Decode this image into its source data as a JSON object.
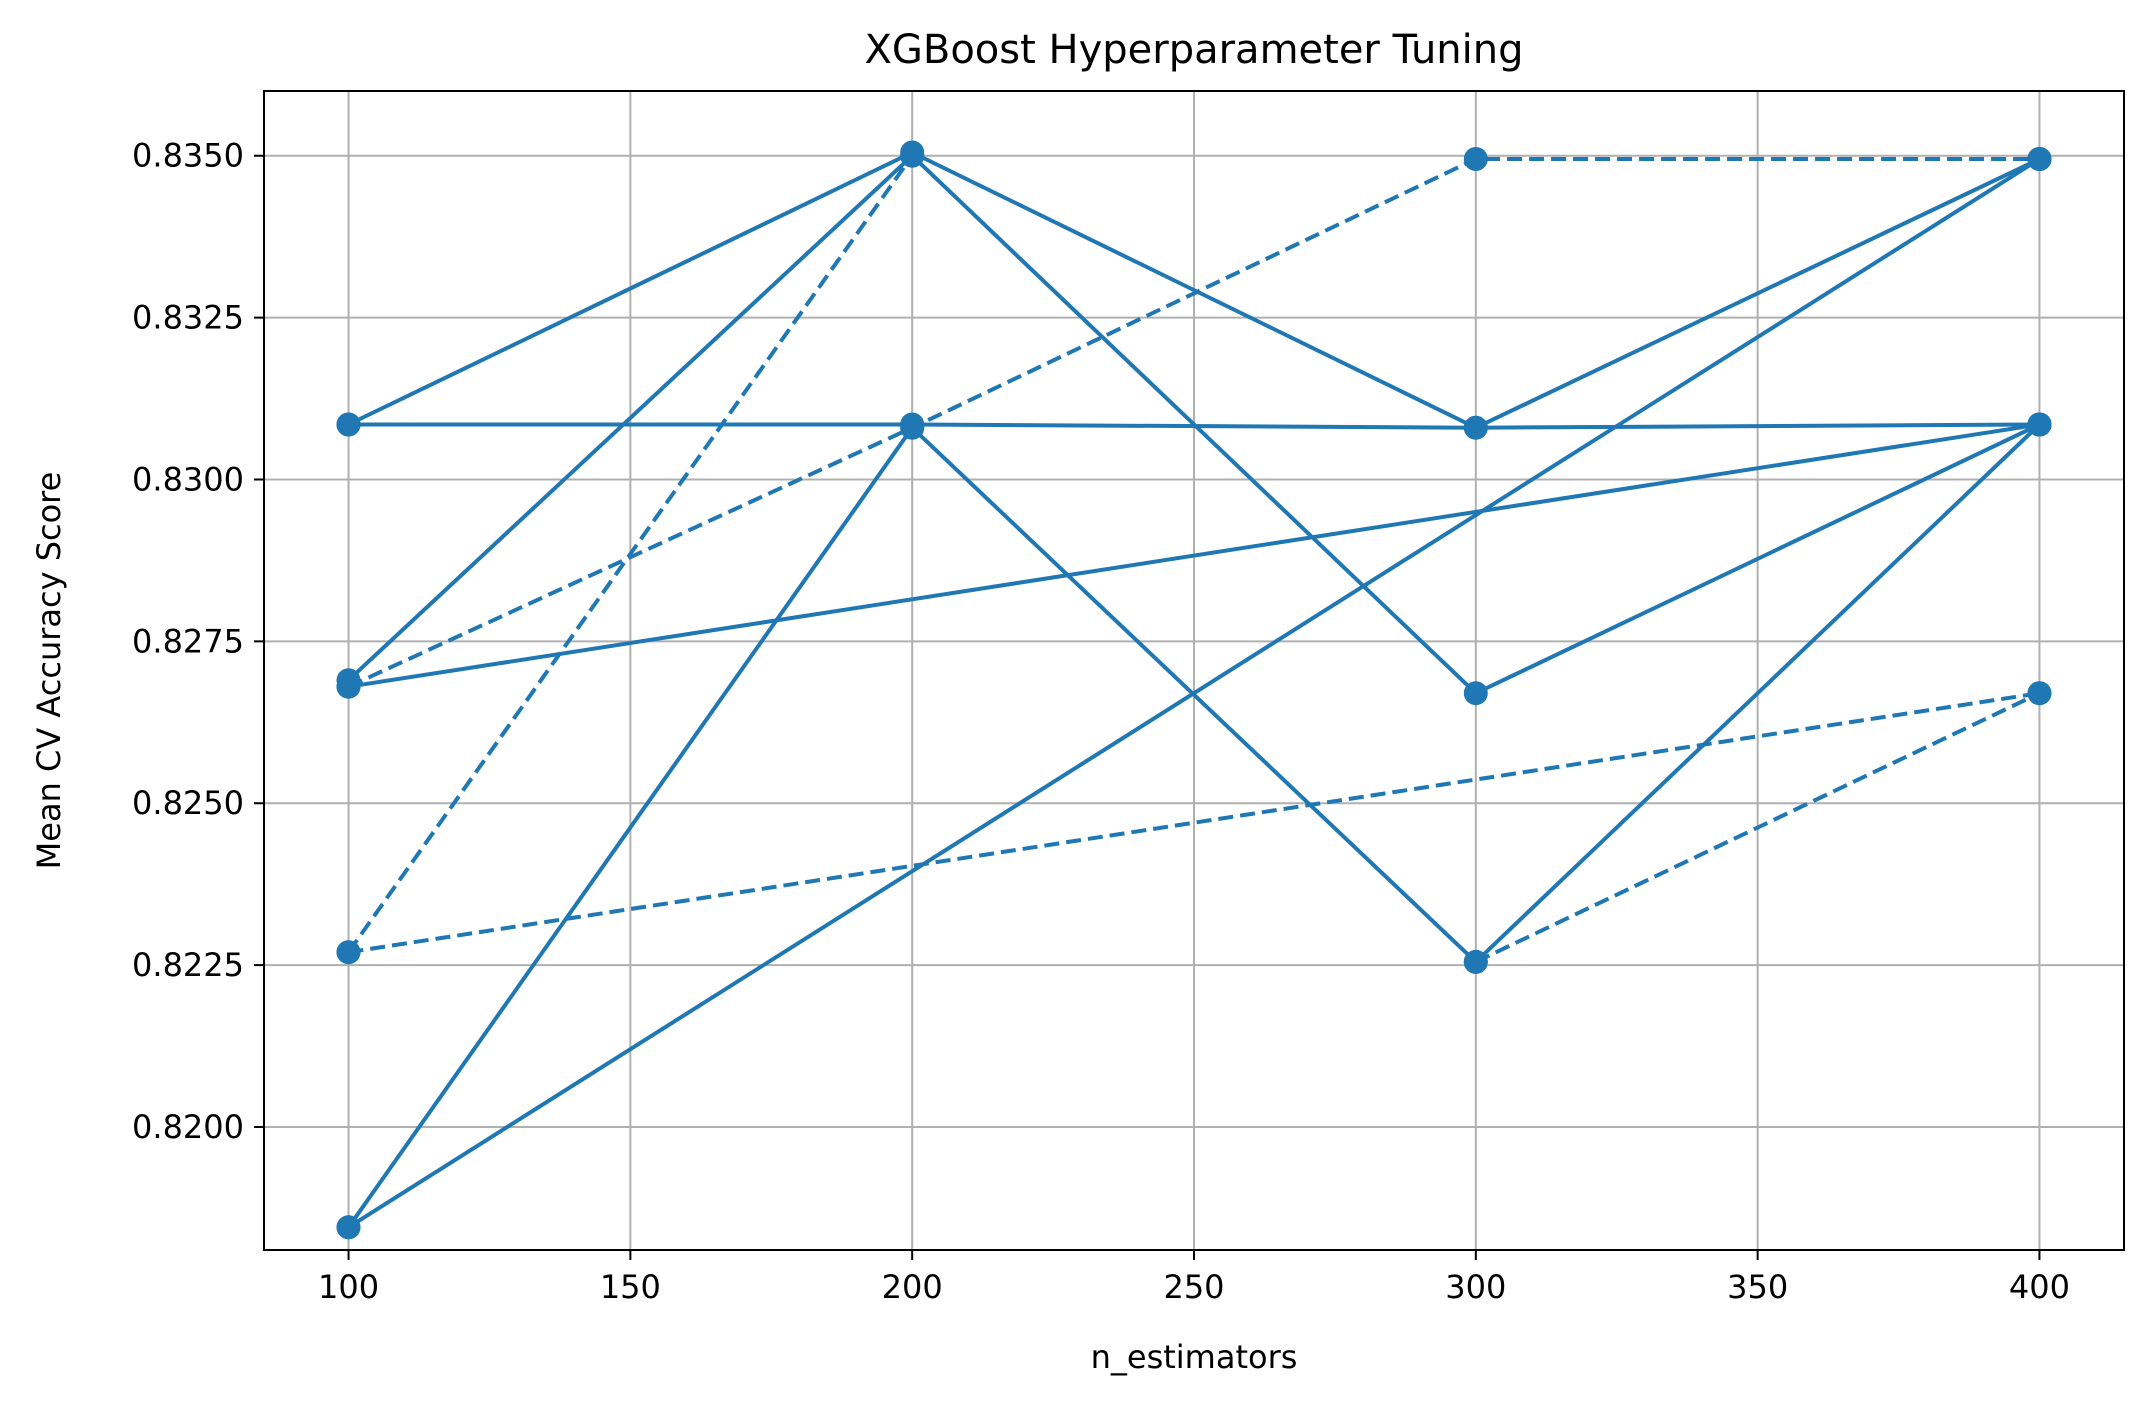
{
  "chart_data": {
    "type": "line",
    "title": "XGBoost Hyperparameter Tuning",
    "xlabel": "n_estimators",
    "ylabel": "Mean CV Accuracy Score",
    "x_ticks": [
      100,
      150,
      200,
      250,
      300,
      350,
      400
    ],
    "y_ticks": [
      0.82,
      0.8225,
      0.825,
      0.8275,
      0.83,
      0.8325,
      0.835
    ],
    "x_tick_labels": [
      "100",
      "150",
      "200",
      "250",
      "300",
      "350",
      "400"
    ],
    "y_tick_labels": [
      "0.8200",
      "0.8225",
      "0.8250",
      "0.8275",
      "0.8300",
      "0.8325",
      "0.8350"
    ],
    "xlim": [
      85,
      415
    ],
    "ylim": [
      0.8181,
      0.836
    ],
    "grid": true,
    "color": "#1f77b4",
    "marker": "circle",
    "series": [
      {
        "style": "solid",
        "points": [
          [
            100,
            0.83085
          ],
          [
            200,
            0.83505
          ],
          [
            300,
            0.8308
          ],
          [
            400,
            0.83495
          ]
        ]
      },
      {
        "style": "solid",
        "points": [
          [
            100,
            0.8269
          ],
          [
            200,
            0.835
          ],
          [
            300,
            0.8267
          ],
          [
            400,
            0.83085
          ]
        ]
      },
      {
        "style": "solid",
        "points": [
          [
            100,
            0.81845
          ],
          [
            200,
            0.8308
          ],
          [
            300,
            0.82255
          ],
          [
            400,
            0.83085
          ]
        ]
      },
      {
        "style": "solid",
        "points": [
          [
            100,
            0.83085
          ],
          [
            200,
            0.83085
          ],
          [
            300,
            0.8308
          ],
          [
            400,
            0.83085
          ]
        ]
      },
      {
        "style": "solid",
        "points": [
          [
            100,
            0.8268
          ],
          [
            400,
            0.83085
          ]
        ]
      },
      {
        "style": "solid",
        "points": [
          [
            100,
            0.81845
          ],
          [
            400,
            0.83495
          ]
        ]
      },
      {
        "style": "dashed",
        "points": [
          [
            100,
            0.8227
          ],
          [
            200,
            0.835
          ]
        ]
      },
      {
        "style": "dashed",
        "points": [
          [
            100,
            0.8268
          ],
          [
            200,
            0.8308
          ],
          [
            300,
            0.83495
          ],
          [
            400,
            0.83495
          ]
        ]
      },
      {
        "style": "dashed",
        "points": [
          [
            100,
            0.8227
          ],
          [
            400,
            0.8267
          ]
        ]
      },
      {
        "style": "dashed",
        "points": [
          [
            300,
            0.82255
          ],
          [
            400,
            0.8267
          ]
        ]
      }
    ]
  }
}
